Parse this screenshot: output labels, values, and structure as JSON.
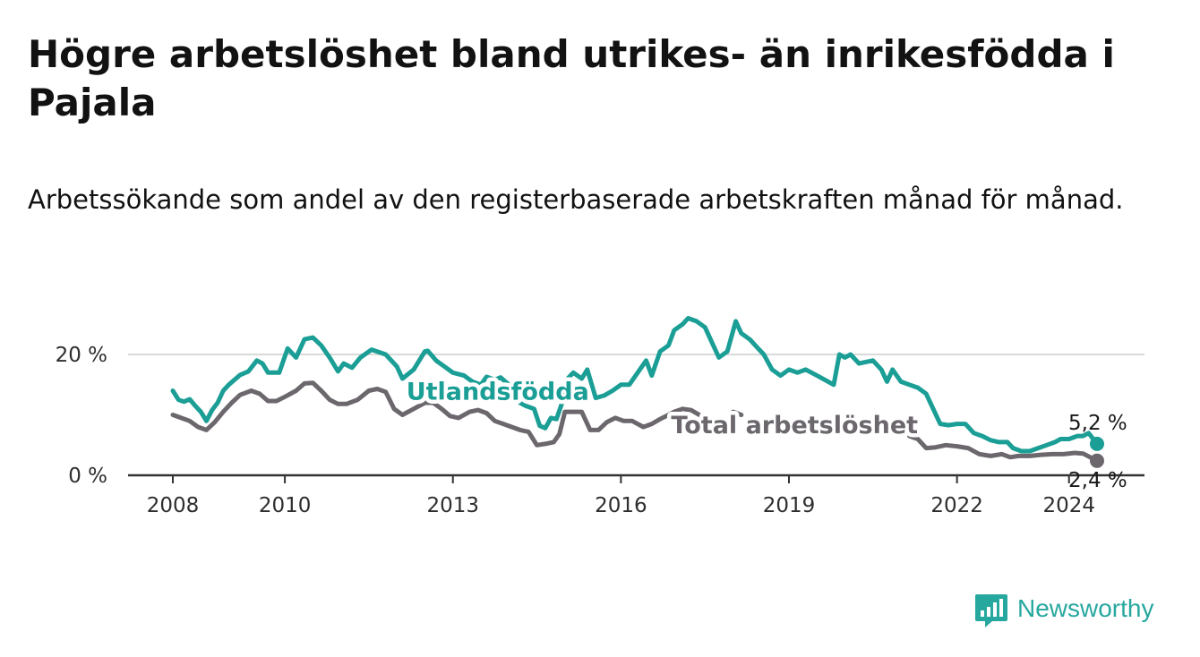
{
  "title": "Högre arbetslöshet bland utrikes- än inrikesfödda i Pajala",
  "subtitle": "Arbetssökande som andel av den registerbaserade arbetskraften månad för månad.",
  "brand": {
    "name": "Newsworthy",
    "icon": "newsworthy-logo-icon",
    "color": "#27a89f"
  },
  "colors": {
    "utlandsfodda": "#1a9e95",
    "total": "#6b676d",
    "grid": "#d9d9d9",
    "axis": "#333333"
  },
  "chart_data": {
    "type": "line",
    "title": "Högre arbetslöshet bland utrikes- än inrikesfödda i Pajala",
    "subtitle": "Arbetssökande som andel av den registerbaserade arbetskraften månad för månad.",
    "y_unit": "%",
    "xlim": [
      2008,
      2024.5
    ],
    "ylim": [
      0,
      25
    ],
    "y_ticks": [
      0,
      20
    ],
    "y_tick_labels": [
      "0 %",
      "20 %"
    ],
    "x_ticks": [
      2008,
      2010,
      2013,
      2016,
      2019,
      2022,
      2024
    ],
    "x_tick_labels": [
      "2008",
      "2010",
      "2013",
      "2016",
      "2019",
      "2022",
      "2024"
    ],
    "grid": "horizontal",
    "legend": "inline labels",
    "series": [
      {
        "name": "Utlandsfödda",
        "color": "#1a9e95",
        "end_label": "5,2 %",
        "points": [
          [
            2008.0,
            14.0
          ],
          [
            2008.1,
            12.5
          ],
          [
            2008.2,
            12.2
          ],
          [
            2008.3,
            12.6
          ],
          [
            2008.4,
            11.5
          ],
          [
            2008.5,
            10.5
          ],
          [
            2008.6,
            9.0
          ],
          [
            2008.7,
            10.8
          ],
          [
            2008.8,
            12.0
          ],
          [
            2008.9,
            14.0
          ],
          [
            2009.0,
            15.0
          ],
          [
            2009.2,
            16.6
          ],
          [
            2009.35,
            17.2
          ],
          [
            2009.5,
            19.0
          ],
          [
            2009.6,
            18.5
          ],
          [
            2009.7,
            17.0
          ],
          [
            2009.9,
            17.0
          ],
          [
            2010.05,
            21.0
          ],
          [
            2010.2,
            19.5
          ],
          [
            2010.35,
            22.5
          ],
          [
            2010.5,
            22.8
          ],
          [
            2010.65,
            21.5
          ],
          [
            2010.8,
            19.5
          ],
          [
            2010.95,
            17.2
          ],
          [
            2011.05,
            18.5
          ],
          [
            2011.2,
            17.8
          ],
          [
            2011.35,
            19.5
          ],
          [
            2011.55,
            20.8
          ],
          [
            2011.8,
            20.0
          ],
          [
            2012.0,
            18.0
          ],
          [
            2012.1,
            16.0
          ],
          [
            2012.3,
            17.5
          ],
          [
            2012.5,
            20.5
          ],
          [
            2012.55,
            20.6
          ],
          [
            2012.7,
            19.0
          ],
          [
            2012.85,
            18.0
          ],
          [
            2013.0,
            17.0
          ],
          [
            2013.2,
            16.5
          ],
          [
            2013.35,
            15.5
          ],
          [
            2013.5,
            15.0
          ],
          [
            2013.6,
            16.3
          ],
          [
            2013.75,
            15.8
          ],
          [
            2013.85,
            16.2
          ],
          [
            2014.0,
            15.0
          ],
          [
            2014.1,
            13.5
          ],
          [
            2014.2,
            12.0
          ],
          [
            2014.3,
            11.5
          ],
          [
            2014.45,
            11.0
          ],
          [
            2014.55,
            8.2
          ],
          [
            2014.65,
            7.8
          ],
          [
            2014.75,
            9.5
          ],
          [
            2014.85,
            9.3
          ],
          [
            2014.95,
            12.0
          ],
          [
            2015.05,
            16.0
          ],
          [
            2015.15,
            17.0
          ],
          [
            2015.3,
            16.0
          ],
          [
            2015.4,
            17.5
          ],
          [
            2015.55,
            12.8
          ],
          [
            2015.7,
            13.2
          ],
          [
            2015.85,
            14.0
          ],
          [
            2016.0,
            15.0
          ],
          [
            2016.15,
            15.0
          ],
          [
            2016.3,
            17.0
          ],
          [
            2016.45,
            19.0
          ],
          [
            2016.55,
            16.5
          ],
          [
            2016.7,
            20.5
          ],
          [
            2016.85,
            21.5
          ],
          [
            2016.95,
            24.0
          ],
          [
            2017.1,
            25.0
          ],
          [
            2017.2,
            26.0
          ],
          [
            2017.35,
            25.5
          ],
          [
            2017.5,
            24.5
          ],
          [
            2017.6,
            22.5
          ],
          [
            2017.75,
            19.5
          ],
          [
            2017.9,
            20.5
          ],
          [
            2018.05,
            25.5
          ],
          [
            2018.15,
            23.5
          ],
          [
            2018.3,
            22.5
          ],
          [
            2018.45,
            21.0
          ],
          [
            2018.55,
            20.0
          ],
          [
            2018.7,
            17.5
          ],
          [
            2018.85,
            16.5
          ],
          [
            2019.0,
            17.5
          ],
          [
            2019.15,
            17.0
          ],
          [
            2019.3,
            17.5
          ],
          [
            2019.5,
            16.5
          ],
          [
            2019.7,
            15.5
          ],
          [
            2019.8,
            15.0
          ],
          [
            2019.9,
            20.0
          ],
          [
            2020.0,
            19.5
          ],
          [
            2020.1,
            20.0
          ],
          [
            2020.25,
            18.5
          ],
          [
            2020.4,
            18.8
          ],
          [
            2020.5,
            19.0
          ],
          [
            2020.65,
            17.5
          ],
          [
            2020.75,
            15.5
          ],
          [
            2020.85,
            17.5
          ],
          [
            2021.0,
            15.5
          ],
          [
            2021.15,
            15.0
          ],
          [
            2021.3,
            14.5
          ],
          [
            2021.45,
            13.5
          ],
          [
            2021.6,
            10.5
          ],
          [
            2021.7,
            8.5
          ],
          [
            2021.85,
            8.3
          ],
          [
            2022.0,
            8.5
          ],
          [
            2022.15,
            8.5
          ],
          [
            2022.3,
            7.0
          ],
          [
            2022.45,
            6.5
          ],
          [
            2022.6,
            5.8
          ],
          [
            2022.75,
            5.5
          ],
          [
            2022.9,
            5.5
          ],
          [
            2023.0,
            4.5
          ],
          [
            2023.15,
            4.0
          ],
          [
            2023.3,
            4.0
          ],
          [
            2023.45,
            4.5
          ],
          [
            2023.6,
            5.0
          ],
          [
            2023.75,
            5.5
          ],
          [
            2023.85,
            6.0
          ],
          [
            2024.0,
            6.0
          ],
          [
            2024.15,
            6.5
          ],
          [
            2024.25,
            6.5
          ],
          [
            2024.35,
            7.0
          ],
          [
            2024.5,
            5.2
          ]
        ]
      },
      {
        "name": "Total arbetslöshet",
        "color": "#6b676d",
        "end_label": "2,4 %",
        "points": [
          [
            2008.0,
            10.0
          ],
          [
            2008.15,
            9.5
          ],
          [
            2008.3,
            9.0
          ],
          [
            2008.45,
            8.0
          ],
          [
            2008.6,
            7.5
          ],
          [
            2008.75,
            8.8
          ],
          [
            2008.9,
            10.5
          ],
          [
            2009.05,
            12.0
          ],
          [
            2009.2,
            13.3
          ],
          [
            2009.4,
            14.0
          ],
          [
            2009.55,
            13.5
          ],
          [
            2009.7,
            12.3
          ],
          [
            2009.85,
            12.3
          ],
          [
            2010.0,
            13.0
          ],
          [
            2010.2,
            14.0
          ],
          [
            2010.35,
            15.2
          ],
          [
            2010.5,
            15.3
          ],
          [
            2010.65,
            14.0
          ],
          [
            2010.8,
            12.5
          ],
          [
            2010.95,
            11.8
          ],
          [
            2011.1,
            11.8
          ],
          [
            2011.3,
            12.5
          ],
          [
            2011.5,
            14.0
          ],
          [
            2011.65,
            14.3
          ],
          [
            2011.8,
            13.8
          ],
          [
            2011.95,
            11.0
          ],
          [
            2012.1,
            10.0
          ],
          [
            2012.3,
            11.0
          ],
          [
            2012.5,
            12.0
          ],
          [
            2012.65,
            12.0
          ],
          [
            2012.8,
            11.0
          ],
          [
            2012.95,
            9.8
          ],
          [
            2013.1,
            9.5
          ],
          [
            2013.3,
            10.5
          ],
          [
            2013.45,
            10.8
          ],
          [
            2013.6,
            10.3
          ],
          [
            2013.75,
            9.0
          ],
          [
            2013.9,
            8.5
          ],
          [
            2014.05,
            8.0
          ],
          [
            2014.2,
            7.5
          ],
          [
            2014.35,
            7.2
          ],
          [
            2014.5,
            5.0
          ],
          [
            2014.65,
            5.2
          ],
          [
            2014.8,
            5.5
          ],
          [
            2014.9,
            6.8
          ],
          [
            2015.0,
            10.5
          ],
          [
            2015.15,
            10.5
          ],
          [
            2015.3,
            10.5
          ],
          [
            2015.45,
            7.5
          ],
          [
            2015.6,
            7.5
          ],
          [
            2015.75,
            8.8
          ],
          [
            2015.9,
            9.5
          ],
          [
            2016.05,
            9.0
          ],
          [
            2016.2,
            9.0
          ],
          [
            2016.4,
            8.0
          ],
          [
            2016.55,
            8.5
          ],
          [
            2016.7,
            9.3
          ],
          [
            2016.85,
            10.0
          ],
          [
            2016.95,
            10.5
          ],
          [
            2017.1,
            11.0
          ],
          [
            2017.25,
            10.8
          ],
          [
            2017.4,
            10.0
          ]
        ],
        "points_b": [
          [
            2018.0,
            10.5
          ],
          [
            2018.15,
            10.0
          ]
        ],
        "points_c": [
          [
            2021.15,
            6.5
          ],
          [
            2021.3,
            6.0
          ],
          [
            2021.45,
            4.5
          ],
          [
            2021.6,
            4.6
          ],
          [
            2021.8,
            5.0
          ],
          [
            2022.0,
            4.8
          ],
          [
            2022.2,
            4.5
          ],
          [
            2022.4,
            3.5
          ],
          [
            2022.6,
            3.2
          ],
          [
            2022.8,
            3.5
          ],
          [
            2022.95,
            3.0
          ],
          [
            2023.1,
            3.2
          ],
          [
            2023.3,
            3.2
          ],
          [
            2023.5,
            3.4
          ],
          [
            2023.7,
            3.5
          ],
          [
            2023.9,
            3.5
          ],
          [
            2024.1,
            3.7
          ],
          [
            2024.25,
            3.6
          ],
          [
            2024.5,
            2.4
          ]
        ]
      }
    ],
    "inline_labels": [
      {
        "series": "Utlandsfödda",
        "text": "Utlandsfödda",
        "x": 2013.8,
        "y": 12.5
      },
      {
        "series": "Total arbetslöshet",
        "text": "Total arbetslöshet",
        "x": 2019.1,
        "y": 7.0
      }
    ]
  }
}
